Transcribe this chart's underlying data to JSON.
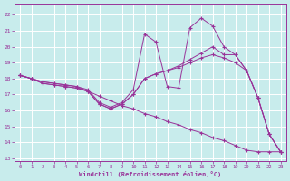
{
  "xlabel": "Windchill (Refroidissement éolien,°C)",
  "bg_color": "#c8ecec",
  "line_color": "#993399",
  "grid_color": "#ffffff",
  "xlim": [
    -0.5,
    23.5
  ],
  "ylim": [
    12.8,
    22.7
  ],
  "yticks": [
    13,
    14,
    15,
    16,
    17,
    18,
    19,
    20,
    21,
    22
  ],
  "xticks": [
    0,
    1,
    2,
    3,
    4,
    5,
    6,
    7,
    8,
    9,
    10,
    11,
    12,
    13,
    14,
    15,
    16,
    17,
    18,
    19,
    20,
    21,
    22,
    23
  ],
  "lines": [
    {
      "x": [
        0,
        1,
        2,
        3,
        4,
        5,
        6,
        7,
        8,
        9,
        10,
        11,
        12,
        13,
        14,
        15,
        16,
        17,
        18,
        19,
        20,
        21,
        22,
        23
      ],
      "y": [
        18.2,
        18.0,
        17.8,
        17.7,
        17.6,
        17.5,
        17.2,
        16.9,
        16.6,
        16.3,
        16.1,
        15.8,
        15.6,
        15.3,
        15.1,
        14.8,
        14.6,
        14.3,
        14.1,
        13.8,
        13.5,
        13.4,
        13.4,
        13.4
      ]
    },
    {
      "x": [
        0,
        1,
        2,
        3,
        4,
        5,
        6,
        7,
        8,
        9,
        10,
        11,
        12,
        13,
        14,
        15,
        16,
        17,
        18,
        19,
        20,
        21,
        22,
        23
      ],
      "y": [
        18.2,
        18.0,
        17.8,
        17.7,
        17.6,
        17.5,
        17.3,
        16.5,
        16.2,
        16.5,
        17.3,
        20.8,
        20.3,
        17.5,
        17.4,
        21.2,
        21.8,
        21.3,
        20.0,
        19.5,
        18.5,
        16.8,
        14.5,
        13.4
      ]
    },
    {
      "x": [
        0,
        1,
        2,
        3,
        4,
        5,
        6,
        7,
        8,
        9,
        10,
        11,
        12,
        13,
        14,
        15,
        16,
        17,
        18,
        19,
        20,
        21,
        22,
        23
      ],
      "y": [
        18.2,
        18.0,
        17.7,
        17.6,
        17.5,
        17.4,
        17.2,
        16.4,
        16.1,
        16.4,
        17.0,
        18.0,
        18.3,
        18.5,
        18.7,
        19.0,
        19.3,
        19.5,
        19.3,
        19.0,
        18.5,
        16.8,
        14.5,
        13.4
      ]
    },
    {
      "x": [
        0,
        1,
        2,
        3,
        4,
        5,
        6,
        7,
        8,
        9,
        10,
        11,
        12,
        13,
        14,
        15,
        16,
        17,
        18,
        19,
        20,
        21,
        22,
        23
      ],
      "y": [
        18.2,
        18.0,
        17.7,
        17.6,
        17.5,
        17.4,
        17.2,
        16.4,
        16.1,
        16.4,
        17.0,
        18.0,
        18.3,
        18.5,
        18.8,
        19.2,
        19.6,
        20.0,
        19.5,
        19.5,
        18.5,
        16.8,
        14.5,
        13.4
      ]
    }
  ]
}
